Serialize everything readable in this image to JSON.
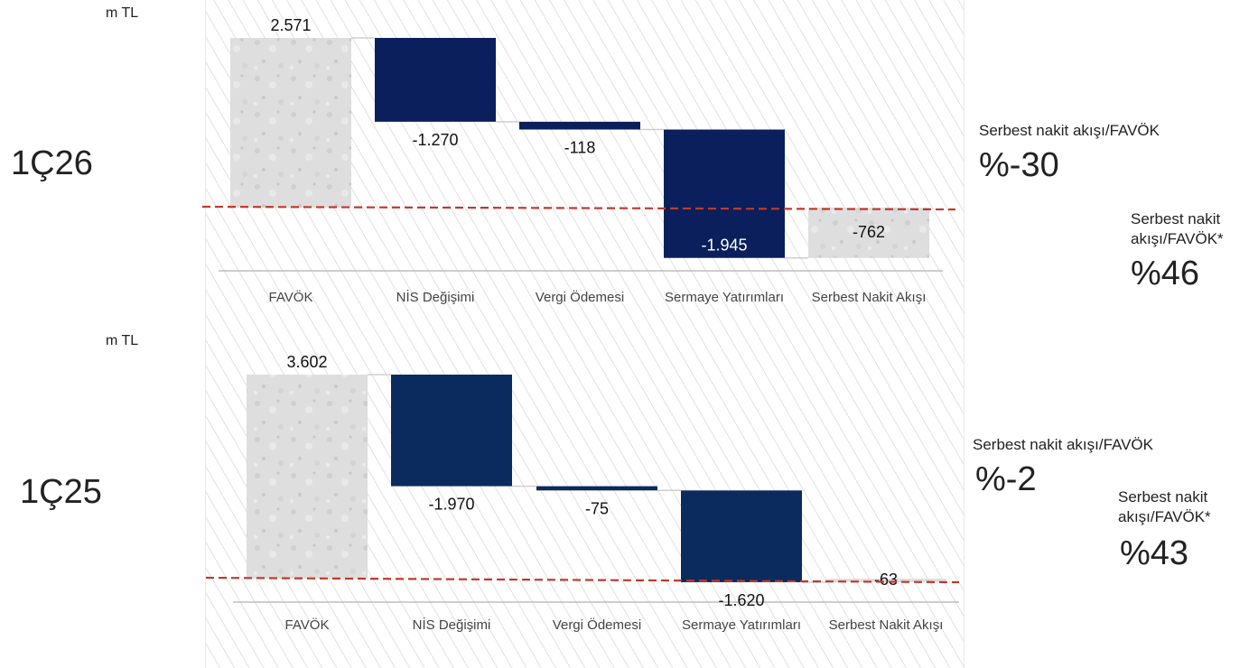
{
  "colors": {
    "bar_dark": "#0a1f5c",
    "bar_dark_2": "#0b2a5e",
    "bar_light": "#d9d9d9",
    "threshold": "#c0392b",
    "axis": "#bdbdbd"
  },
  "panels": [
    {
      "period_label": "1Ç26",
      "unit": "m TL",
      "side_metrics": [
        {
          "label": "Serbest nakit akışı/FAVÖK",
          "value": "%-30"
        },
        {
          "label": "Serbest nakit akışı/FAVÖK*",
          "value": "%46"
        }
      ],
      "chart_data": {
        "type": "waterfall",
        "categories": [
          "FAVÖK",
          "NİS Değişimi",
          "Vergi Ödemesi",
          "Sermaye Yatırımları",
          "Serbest Nakit Akışı"
        ],
        "values": [
          2571,
          -1270,
          -118,
          -1945,
          -762
        ],
        "value_labels": [
          "2.571",
          "-1.270",
          "-118",
          "-1.945",
          "-762"
        ],
        "bar_kind": [
          "total",
          "delta",
          "delta",
          "delta",
          "total"
        ],
        "ylim": [
          -1000,
          2700
        ]
      }
    },
    {
      "period_label": "1Ç25",
      "unit": "m TL",
      "side_metrics": [
        {
          "label": "Serbest nakit akışı/FAVÖK",
          "value": "%-2"
        },
        {
          "label": "Serbest nakit akışı/FAVÖK*",
          "value": "%43"
        }
      ],
      "chart_data": {
        "type": "waterfall",
        "categories": [
          "FAVÖK",
          "NİS Değişimi",
          "Vergi Ödemesi",
          "Sermaye Yatırımları",
          "Serbest Nakit Akışı"
        ],
        "values": [
          3602,
          -1970,
          -75,
          -1620,
          -63
        ],
        "value_labels": [
          "3.602",
          "-1.970",
          "-75",
          "-1.620",
          "-63"
        ],
        "bar_kind": [
          "total",
          "delta",
          "delta",
          "delta",
          "total"
        ],
        "ylim": [
          -300,
          3800
        ]
      }
    }
  ]
}
